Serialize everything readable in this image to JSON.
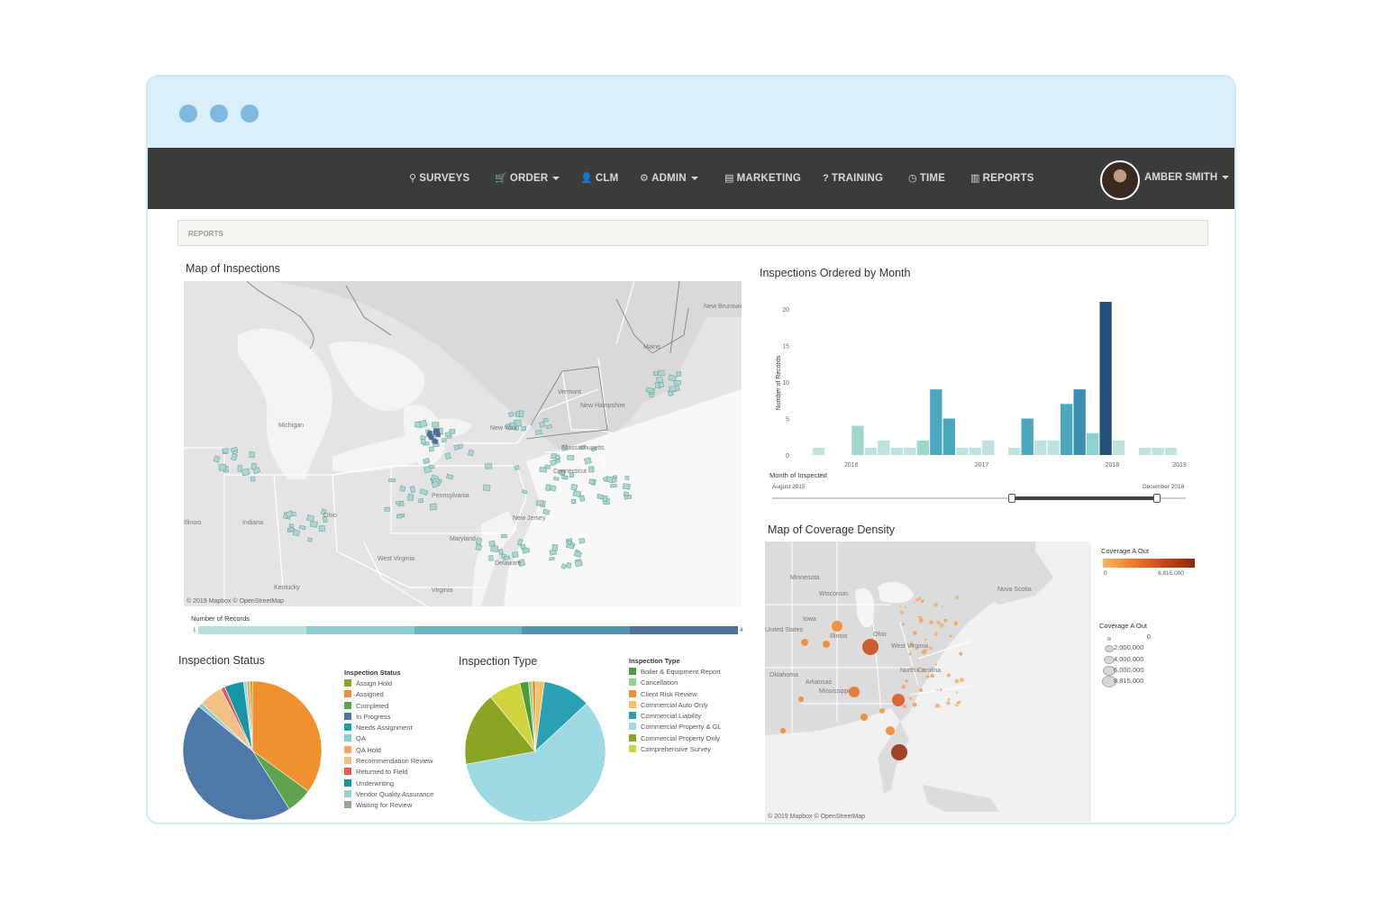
{
  "nav": {
    "items": [
      {
        "label": "SURVEYS",
        "icon": "search-icon",
        "glyph": "⚲",
        "caret": false
      },
      {
        "label": "ORDER",
        "icon": "cart-icon",
        "glyph": "🛒",
        "caret": true
      },
      {
        "label": "CLM",
        "icon": "user-icon",
        "glyph": "👤",
        "caret": false
      },
      {
        "label": "ADMIN",
        "icon": "gear-icon",
        "glyph": "⚙",
        "caret": true
      },
      {
        "label": "MARKETING",
        "icon": "book-icon",
        "glyph": "▤",
        "caret": false
      },
      {
        "label": "TRAINING",
        "icon": "help-icon",
        "glyph": "?",
        "caret": false
      },
      {
        "label": "TIME",
        "icon": "clock-icon",
        "glyph": "◷",
        "caret": false
      },
      {
        "label": "REPORTS",
        "icon": "bar-chart-icon",
        "glyph": "▥",
        "caret": false
      }
    ],
    "user": "AMBER SMITH"
  },
  "breadcrumb": "REPORTS",
  "map_inspections": {
    "title": "Map of Inspections",
    "labels": [
      "New Brunswick",
      "Maine",
      "Vermont",
      "New Hampshire",
      "Michigan",
      "New York",
      "Massachusetts",
      "Connecticut",
      "Pennsylvania",
      "New Jersey",
      "Ohio",
      "Indiana",
      "Illinois",
      "West Virginia",
      "Delaware",
      "Maryland",
      "Kentucky",
      "Virginia"
    ],
    "attribution": "© 2019 Mapbox © OpenStreetMap",
    "legend_title": "Number of Records",
    "legend_min": "1",
    "legend_max": "4",
    "colors": [
      "#b8e0dc",
      "#8ecdd2",
      "#6ab3c3",
      "#5393b1",
      "#4d6f98"
    ]
  },
  "chart_data": [
    {
      "type": "bar",
      "title": "Inspections Ordered by Month",
      "xlabel": "Month of Inspected",
      "ylabel": "Number of Records",
      "ylim": [
        0,
        21
      ],
      "yticks": [
        0,
        5,
        10,
        15,
        20
      ],
      "xtick_labels": [
        "2016",
        "2017",
        "2018",
        "2019"
      ],
      "x": [
        1,
        4,
        5,
        6,
        7,
        8,
        9,
        10,
        11,
        12,
        13,
        14,
        16,
        17,
        18,
        19,
        20,
        21,
        22,
        23,
        24,
        26,
        27,
        28
      ],
      "values": [
        1,
        4,
        1,
        2,
        1,
        1,
        2,
        9,
        5,
        1,
        1,
        2,
        1,
        5,
        2,
        2,
        7,
        9,
        3,
        21,
        2,
        1,
        1,
        1
      ],
      "colors": [
        "#bde3db",
        "#9fd6cc",
        "#bde3db",
        "#bde3db",
        "#bde3db",
        "#bde3db",
        "#9fd6cc",
        "#4aa7bd",
        "#4aa7bd",
        "#bde3db",
        "#bde3db",
        "#bde3db",
        "#bde3db",
        "#4aa7bd",
        "#bde3db",
        "#bde3db",
        "#4aa7bd",
        "#3b8fb0",
        "#8fd2cc",
        "#25507c",
        "#bde3db",
        "#bde3db",
        "#bde3db",
        "#bde3db"
      ],
      "grid": false,
      "filter": {
        "label": "Month of Inspected",
        "start": "August 2015",
        "end": "December 2018",
        "handle_start": 0.58,
        "handle_end": 0.93
      }
    },
    {
      "type": "pie",
      "title": "Inspection Status",
      "legend_title": "Inspection Status",
      "categories": [
        "Assign Hold",
        "Assigned",
        "Completed",
        "In Progress",
        "Needs Assignment",
        "QA",
        "QA Hold",
        "Recommendation Review",
        "Returned to Field",
        "Underwriting",
        "Vendor Quality Assurance",
        "Waiting for Review"
      ],
      "colors": [
        "#8aa524",
        "#f0902e",
        "#5fa34d",
        "#4e78a8",
        "#16a2a0",
        "#84cdd2",
        "#f6a654",
        "#f4c184",
        "#e55a58",
        "#1596a5",
        "#9bcfd8",
        "#a0a0a0"
      ],
      "values": [
        0.5,
        35,
        6,
        45,
        0,
        1,
        0.8,
        5.5,
        1,
        4.5,
        0.7,
        0
      ],
      "slices_order": [
        "Assigned",
        "Completed",
        "In Progress",
        "QA",
        "Recommendation Review",
        "Returned to Field",
        "Underwriting",
        "Vendor Quality Assurance",
        "QA Hold",
        "Assign Hold"
      ],
      "legend": "right"
    },
    {
      "type": "pie",
      "title": "Inspection Type",
      "legend_title": "Inspection Type",
      "categories": [
        "Boiler & Equipment Report",
        "Cancellation",
        "Client Risk Review",
        "Commercial Auto Only",
        "Commercial Liability",
        "Commercial Property & GL",
        "Commercial Property Only",
        "Comprehensive Survey"
      ],
      "colors": [
        "#4f9a3c",
        "#8bd48a",
        "#f0902e",
        "#f6c064",
        "#2aa0b3",
        "#9dd9e3",
        "#8aa524",
        "#cfd33c"
      ],
      "values": [
        2,
        0.8,
        0.8,
        2,
        11,
        59,
        17,
        7.4
      ],
      "legend": "right"
    },
    {
      "type": "scatter",
      "title": "Map of Coverage Density",
      "legend_color_title": "Coverage A Out",
      "legend_color_min": "0",
      "legend_color_max": "8,815,000",
      "legend_size_title": "Coverage A Out",
      "size_levels": [
        "0",
        "2,000,000",
        "4,000,000",
        "6,000,000",
        "8,815,000"
      ],
      "labels": [
        "Minnesota",
        "Wisconsin",
        "Iowa",
        "Illinois",
        "Ohio",
        "West Virginia",
        "North Carolina",
        "Oklahoma",
        "Arkansas",
        "Mississippi",
        "Nova Scotia",
        "United States"
      ],
      "attribution": "© 2019 Mapbox © OpenStreetMap"
    }
  ]
}
